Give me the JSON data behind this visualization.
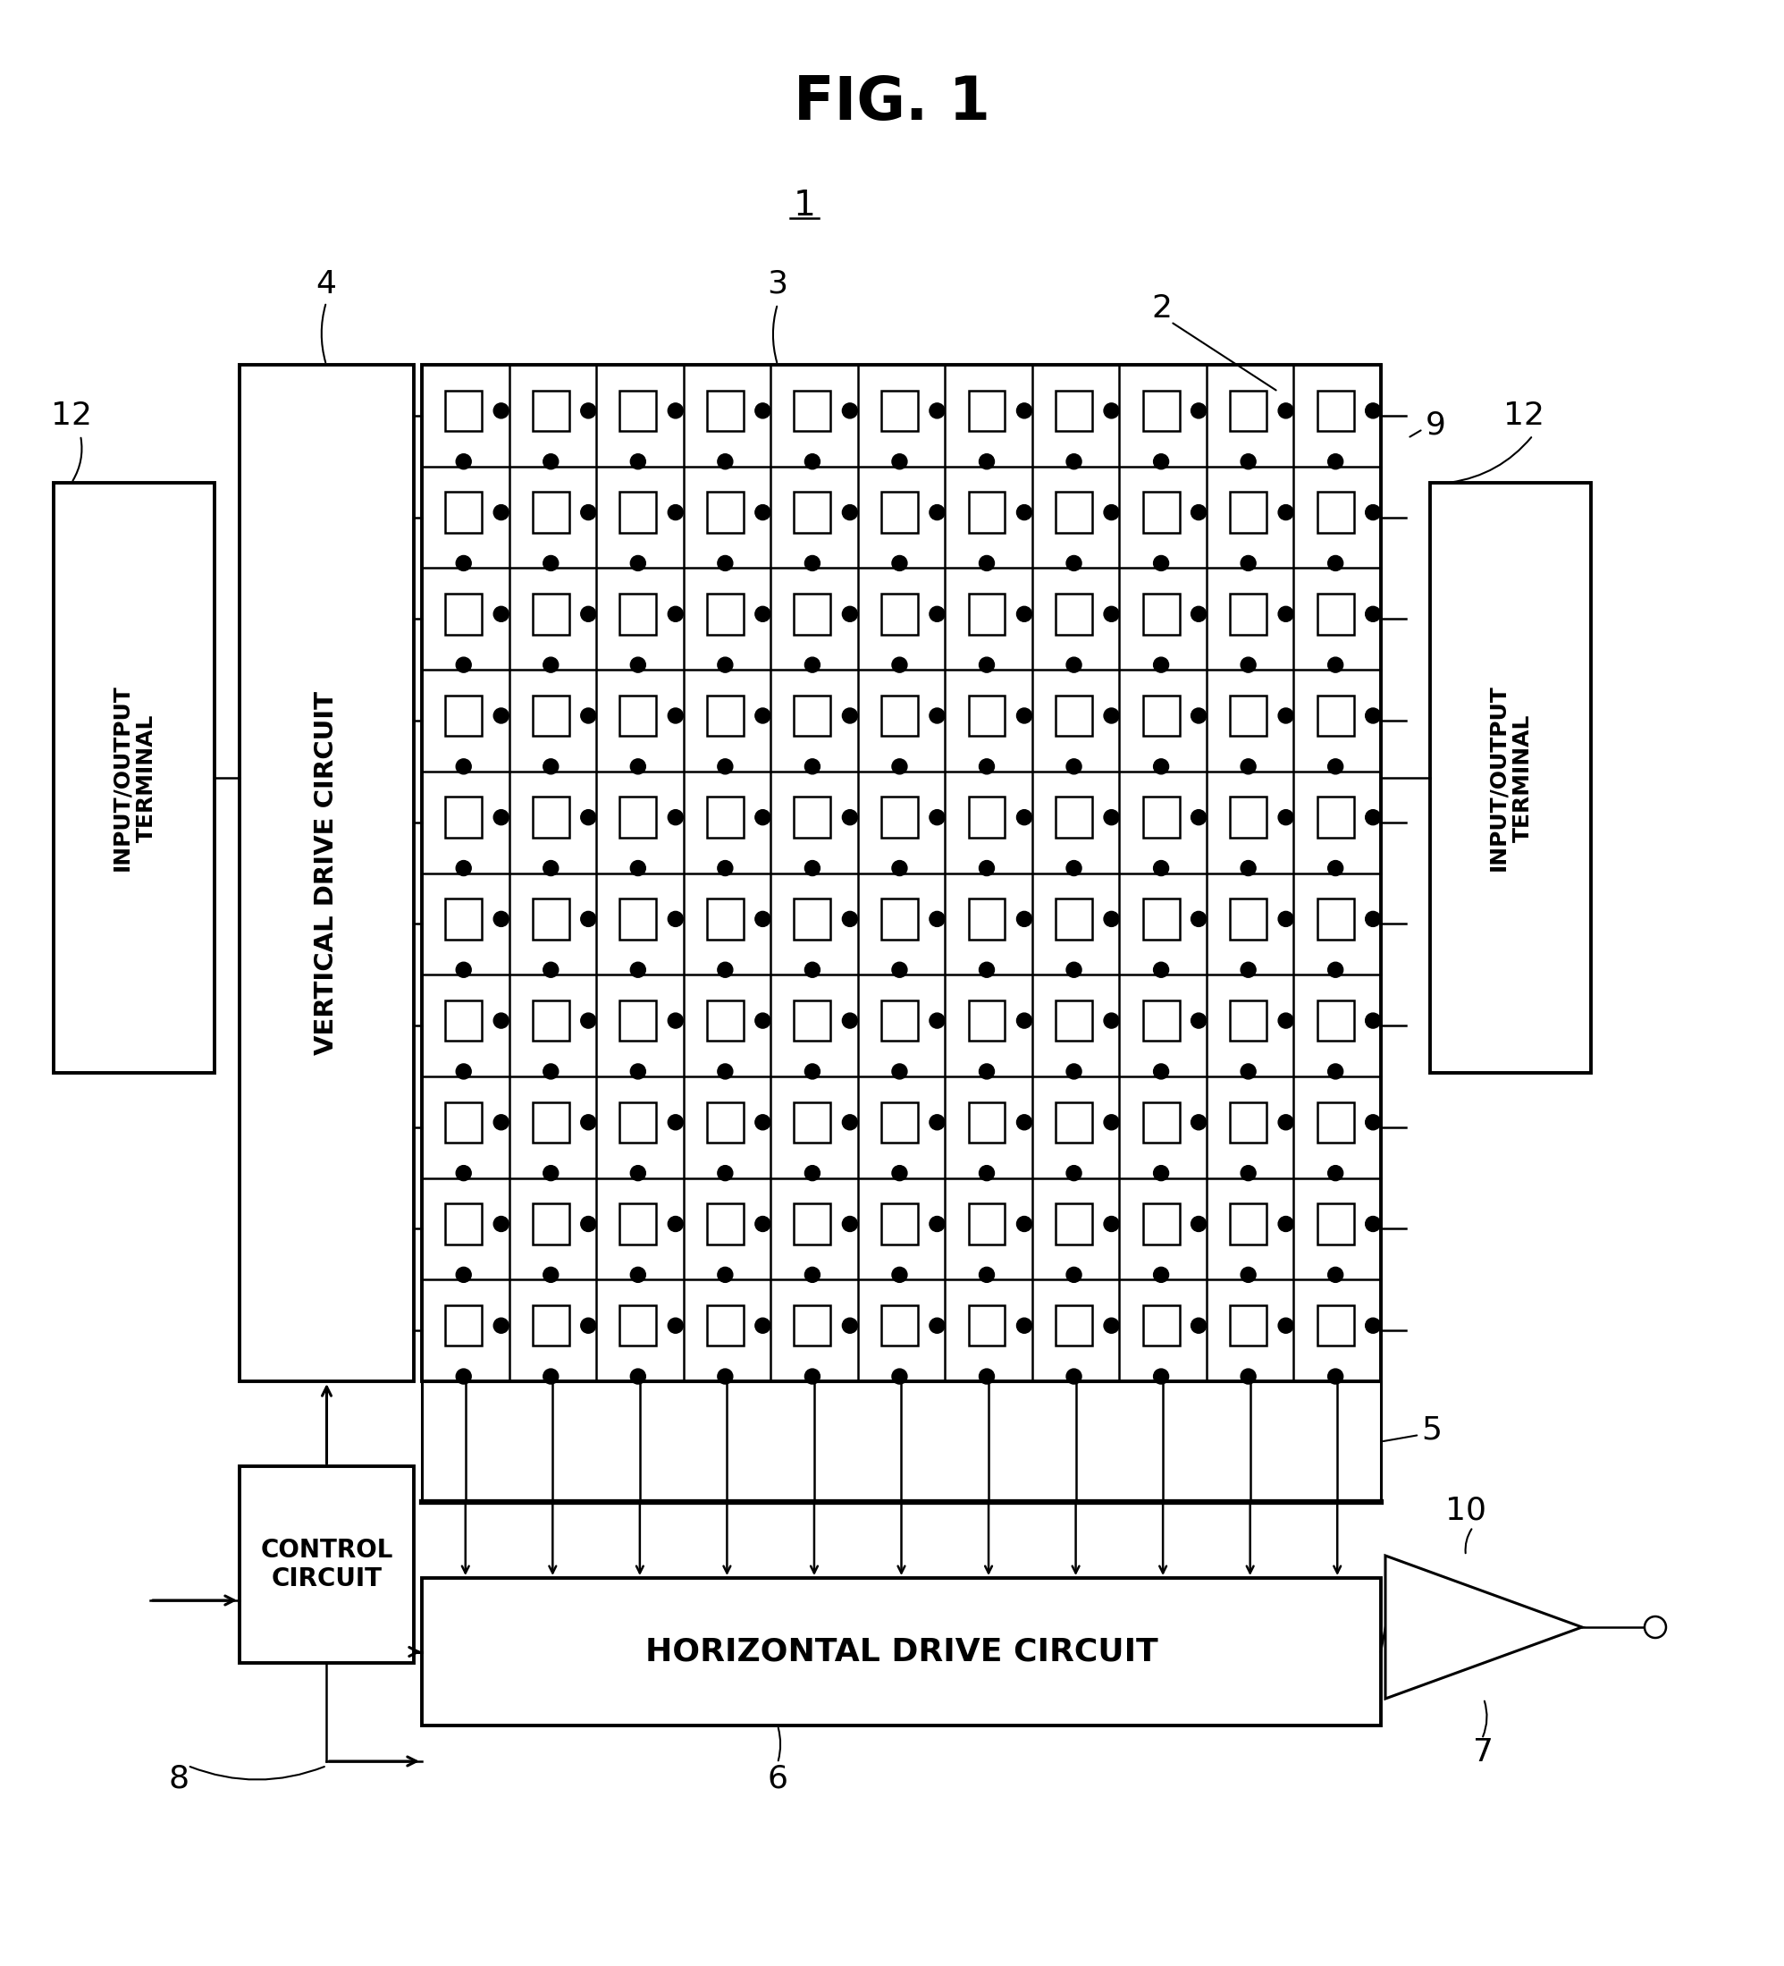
{
  "fig_title": "FIG. 1",
  "bg_color": "#ffffff",
  "label_1": "1",
  "label_2": "2",
  "label_3": "3",
  "label_4": "4",
  "label_5": "5",
  "label_6": "6",
  "label_7": "7",
  "label_8": "8",
  "label_9": "9",
  "label_10": "10",
  "label_12a": "12",
  "label_12b": "12",
  "grid_rows": 10,
  "grid_cols": 11,
  "vdc_label": "VERTICAL DRIVE CIRCUIT",
  "hdc_label": "HORIZONTAL DRIVE CIRCUIT",
  "cc_label": "CONTROL\nCIRCUIT",
  "iot_label": "INPUT/OUTPUT\nTERMINAL"
}
